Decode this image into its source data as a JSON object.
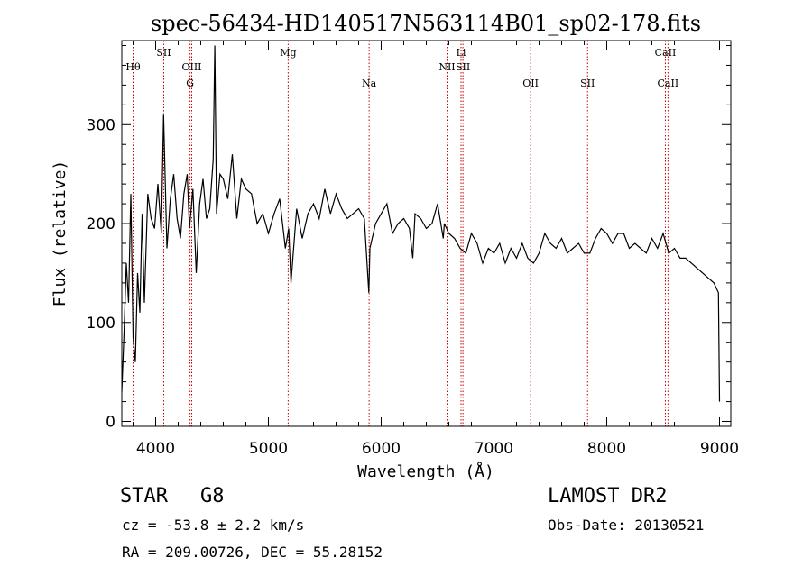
{
  "chart_data": {
    "type": "line",
    "title": "spec-56434-HD140517N563114B01_sp02-178.fits",
    "xlabel": "Wavelength (Å)",
    "ylabel": "Flux (relative)",
    "xlim": [
      3700,
      9100
    ],
    "ylim": [
      -5,
      385
    ],
    "xticks": [
      4000,
      5000,
      6000,
      7000,
      8000,
      9000
    ],
    "yticks": [
      0,
      100,
      200,
      300
    ],
    "grid": false,
    "series": [
      {
        "x": [
          3700,
          3720,
          3740,
          3760,
          3780,
          3800,
          3820,
          3840,
          3860,
          3880,
          3900,
          3930,
          3960,
          3990,
          4020,
          4050,
          4070,
          4100,
          4130,
          4160,
          4190,
          4220,
          4250,
          4280,
          4300,
          4330,
          4360,
          4390,
          4420,
          4450,
          4480,
          4510,
          4525,
          4540,
          4570,
          4600,
          4640,
          4680,
          4720,
          4760,
          4800,
          4850,
          4900,
          4950,
          5000,
          5050,
          5100,
          5150,
          5180,
          5200,
          5250,
          5300,
          5350,
          5400,
          5450,
          5500,
          5550,
          5600,
          5650,
          5700,
          5750,
          5800,
          5850,
          5890,
          5900,
          5950,
          6000,
          6050,
          6100,
          6150,
          6200,
          6250,
          6280,
          6300,
          6350,
          6400,
          6450,
          6500,
          6550,
          6560,
          6600,
          6650,
          6700,
          6750,
          6800,
          6850,
          6900,
          6950,
          7000,
          7050,
          7100,
          7150,
          7200,
          7250,
          7300,
          7350,
          7400,
          7450,
          7500,
          7550,
          7600,
          7650,
          7700,
          7750,
          7800,
          7850,
          7900,
          7950,
          8000,
          8050,
          8100,
          8150,
          8200,
          8250,
          8300,
          8350,
          8400,
          8450,
          8500,
          8550,
          8600,
          8650,
          8700,
          8750,
          8800,
          8850,
          8900,
          8950,
          8990,
          9000
        ],
        "y": [
          30,
          90,
          160,
          120,
          230,
          85,
          60,
          150,
          110,
          210,
          120,
          230,
          205,
          195,
          240,
          190,
          310,
          175,
          225,
          250,
          205,
          185,
          230,
          250,
          195,
          235,
          150,
          220,
          245,
          205,
          215,
          265,
          380,
          210,
          250,
          245,
          225,
          270,
          205,
          245,
          235,
          230,
          200,
          210,
          190,
          210,
          225,
          175,
          195,
          140,
          215,
          185,
          210,
          220,
          205,
          235,
          210,
          230,
          215,
          205,
          210,
          215,
          205,
          130,
          175,
          200,
          210,
          220,
          190,
          200,
          205,
          195,
          165,
          210,
          205,
          195,
          200,
          220,
          185,
          200,
          190,
          185,
          175,
          170,
          190,
          180,
          160,
          175,
          170,
          180,
          160,
          175,
          165,
          180,
          165,
          160,
          170,
          190,
          180,
          175,
          185,
          170,
          175,
          180,
          170,
          170,
          185,
          195,
          190,
          180,
          190,
          190,
          175,
          180,
          175,
          170,
          185,
          175,
          190,
          170,
          175,
          165,
          165,
          160,
          155,
          150,
          145,
          140,
          130,
          20
        ]
      }
    ],
    "lines": [
      {
        "label": "Hθ",
        "x": 3800,
        "row": 1
      },
      {
        "label": "SII",
        "x": 4072,
        "row": 0
      },
      {
        "label": "OIII",
        "x": 4320,
        "row": 1
      },
      {
        "label": "G",
        "x": 4305,
        "row": 2
      },
      {
        "label": "Mg",
        "x": 5175,
        "row": 0
      },
      {
        "label": "Na",
        "x": 5893,
        "row": 2
      },
      {
        "label": "Li",
        "x": 6708,
        "row": 0
      },
      {
        "label": "NII",
        "x": 6584,
        "row": 1
      },
      {
        "label": "SII",
        "x": 6725,
        "row": 1
      },
      {
        "label": "OII",
        "x": 7325,
        "row": 2
      },
      {
        "label": "SII",
        "x": 7830,
        "row": 2
      },
      {
        "label": "CaII",
        "x": 8520,
        "row": 0
      },
      {
        "label": "CaII",
        "x": 8543,
        "row": 2
      }
    ]
  },
  "footer": {
    "object_class": "STAR",
    "subclass": "G8",
    "cz": "cz = -53.8 ± 2.2 km/s",
    "coords": "RA = 209.00726, DEC =  55.28152",
    "survey": "LAMOST DR2",
    "obs_date": "Obs-Date: 20130521"
  },
  "colors": {
    "axis": "#000000",
    "spectrum": "#000000",
    "marker_line": "#cc0000"
  }
}
